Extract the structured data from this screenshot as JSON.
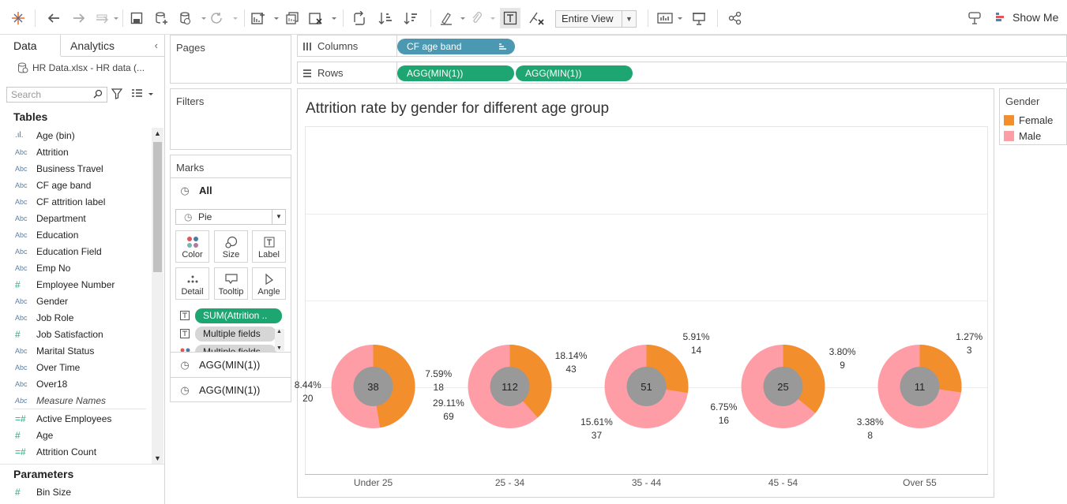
{
  "toolbar": {
    "view_mode": "Entire View",
    "show_me": "Show Me"
  },
  "left_pane": {
    "tab_data": "Data",
    "tab_analytics": "Analytics",
    "datasource": "HR Data.xlsx - HR data (...",
    "search_placeholder": "Search",
    "tables_title": "Tables",
    "fields": [
      {
        "type": "bin",
        "name": "Age (bin)"
      },
      {
        "type": "Abc",
        "name": "Attrition"
      },
      {
        "type": "Abc",
        "name": "Business Travel"
      },
      {
        "type": "Abc",
        "name": "CF age band"
      },
      {
        "type": "Abc",
        "name": "CF attrition label"
      },
      {
        "type": "Abc",
        "name": "Department"
      },
      {
        "type": "Abc",
        "name": "Education"
      },
      {
        "type": "Abc",
        "name": "Education Field"
      },
      {
        "type": "Abc",
        "name": "Emp No"
      },
      {
        "type": "#",
        "name": "Employee Number"
      },
      {
        "type": "Abc",
        "name": "Gender"
      },
      {
        "type": "Abc",
        "name": "Job Role"
      },
      {
        "type": "#",
        "name": "Job Satisfaction"
      },
      {
        "type": "Abc",
        "name": "Marital Status"
      },
      {
        "type": "Abc",
        "name": "Over Time"
      },
      {
        "type": "Abc",
        "name": "Over18"
      },
      {
        "type": "Abc",
        "name": "Measure Names"
      },
      {
        "type": "=#",
        "name": "Active Employees"
      },
      {
        "type": "#",
        "name": "Age"
      },
      {
        "type": "=#",
        "name": "Attrition Count"
      }
    ],
    "parameters_title": "Parameters",
    "parameters": [
      {
        "type": "#",
        "name": "Bin Size"
      }
    ]
  },
  "cards": {
    "pages": "Pages",
    "filters": "Filters",
    "marks": "Marks",
    "marks_all": "All",
    "mark_type": "Pie",
    "buttons": [
      "Color",
      "Size",
      "Label",
      "Detail",
      "Tooltip",
      "Angle"
    ],
    "mark_pills": [
      "SUM(Attrition ..",
      "Multiple fields",
      "Multiple fields"
    ],
    "agg_rows": [
      "AGG(MIN(1))",
      "AGG(MIN(1))"
    ]
  },
  "shelves": {
    "columns_label": "Columns",
    "rows_label": "Rows",
    "columns_pill": "CF age band",
    "rows_pills": [
      "AGG(MIN(1))",
      "AGG(MIN(1))"
    ]
  },
  "legend": {
    "title": "Gender",
    "items": [
      {
        "label": "Female",
        "color": "#f28e2b"
      },
      {
        "label": "Male",
        "color": "#ff9da7"
      }
    ]
  },
  "chart_data": {
    "type": "pie",
    "title": "Attrition rate by gender for different age group",
    "categories": [
      "Under 25",
      "25 - 34",
      "35 - 44",
      "45 - 54",
      "Over 55"
    ],
    "center_totals": [
      38,
      112,
      51,
      25,
      11
    ],
    "series": [
      {
        "name": "Female",
        "color": "#f28e2b",
        "values": [
          18,
          43,
          14,
          9,
          3
        ],
        "percent_labels": [
          "7.59%",
          "18.14%",
          "5.91%",
          "3.80%",
          "1.27%"
        ]
      },
      {
        "name": "Male",
        "color": "#ff9da7",
        "values": [
          20,
          69,
          37,
          16,
          8
        ],
        "percent_labels": [
          "8.44%",
          "29.11%",
          "15.61%",
          "6.75%",
          "3.38%"
        ]
      }
    ],
    "hole_color": "#999999",
    "grid": "horizontal"
  }
}
